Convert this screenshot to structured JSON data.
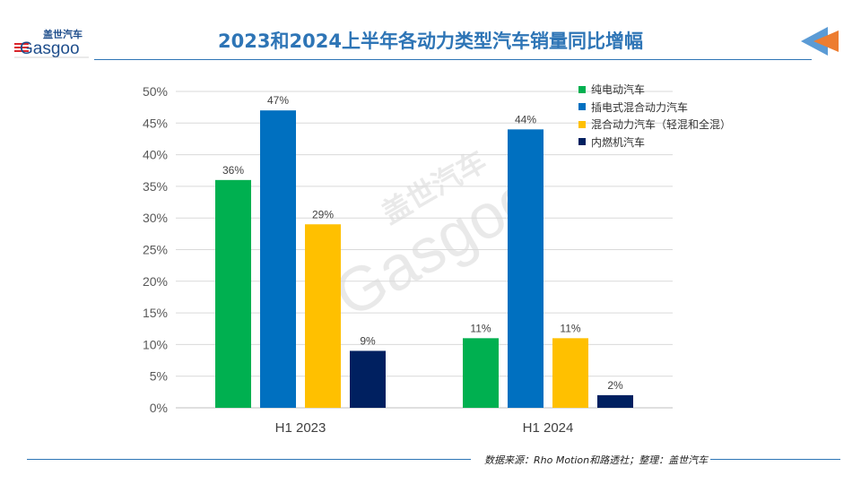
{
  "header": {
    "title": "2023和2024上半年各动力类型汽车销量同比增幅",
    "logo_text": "盖世汽车 Gasgoo"
  },
  "footer": {
    "source": "数据来源：Rho Motion和路透社；整理：盖世汽车"
  },
  "watermark": "盖世汽车 Gasgoo",
  "chart_data": {
    "type": "bar",
    "title": "2023和2024上半年各动力类型汽车销量同比增幅",
    "categories": [
      "H1 2023",
      "H1 2024"
    ],
    "series": [
      {
        "name": "纯电动汽车",
        "values": [
          36,
          11
        ],
        "color": "#00b050"
      },
      {
        "name": "插电式混合动力汽车",
        "values": [
          47,
          44
        ],
        "color": "#0070c0"
      },
      {
        "name": "混合动力汽车（轻混和全混）",
        "values": [
          29,
          11
        ],
        "color": "#ffc000"
      },
      {
        "name": "内燃机汽车",
        "values": [
          9,
          2
        ],
        "color": "#002060"
      }
    ],
    "ylim": [
      0,
      50
    ],
    "yticks": [
      "0%",
      "5%",
      "10%",
      "15%",
      "20%",
      "25%",
      "30%",
      "35%",
      "40%",
      "45%",
      "50%"
    ],
    "unit": "%",
    "grid": true,
    "legend": "top-right"
  }
}
